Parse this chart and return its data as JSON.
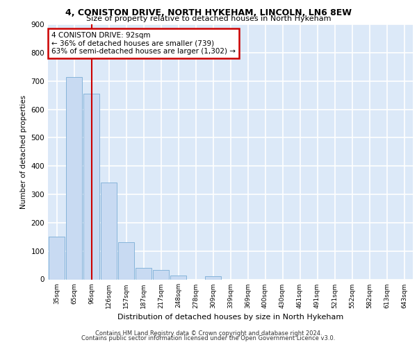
{
  "title1": "4, CONISTON DRIVE, NORTH HYKEHAM, LINCOLN, LN6 8EW",
  "title2": "Size of property relative to detached houses in North Hykeham",
  "xlabel": "Distribution of detached houses by size in North Hykeham",
  "ylabel": "Number of detached properties",
  "categories": [
    "35sqm",
    "65sqm",
    "96sqm",
    "126sqm",
    "157sqm",
    "187sqm",
    "217sqm",
    "248sqm",
    "278sqm",
    "309sqm",
    "339sqm",
    "369sqm",
    "400sqm",
    "430sqm",
    "461sqm",
    "491sqm",
    "521sqm",
    "552sqm",
    "582sqm",
    "613sqm",
    "643sqm"
  ],
  "values": [
    150,
    715,
    655,
    342,
    130,
    40,
    33,
    13,
    0,
    10,
    0,
    0,
    0,
    0,
    0,
    0,
    0,
    0,
    0,
    0,
    0
  ],
  "bar_color": "#c8daf2",
  "bar_edge_color": "#7aadd6",
  "property_line_x": 2.0,
  "annotation_text": "4 CONISTON DRIVE: 92sqm\n← 36% of detached houses are smaller (739)\n63% of semi-detached houses are larger (1,302) →",
  "annotation_box_color": "#ffffff",
  "annotation_box_edge": "#cc0000",
  "vline_color": "#cc0000",
  "footer1": "Contains HM Land Registry data © Crown copyright and database right 2024.",
  "footer2": "Contains public sector information licensed under the Open Government Licence v3.0.",
  "ylim": [
    0,
    900
  ],
  "yticks": [
    0,
    100,
    200,
    300,
    400,
    500,
    600,
    700,
    800,
    900
  ],
  "bg_color": "#dce9f8",
  "grid_color": "#ffffff"
}
